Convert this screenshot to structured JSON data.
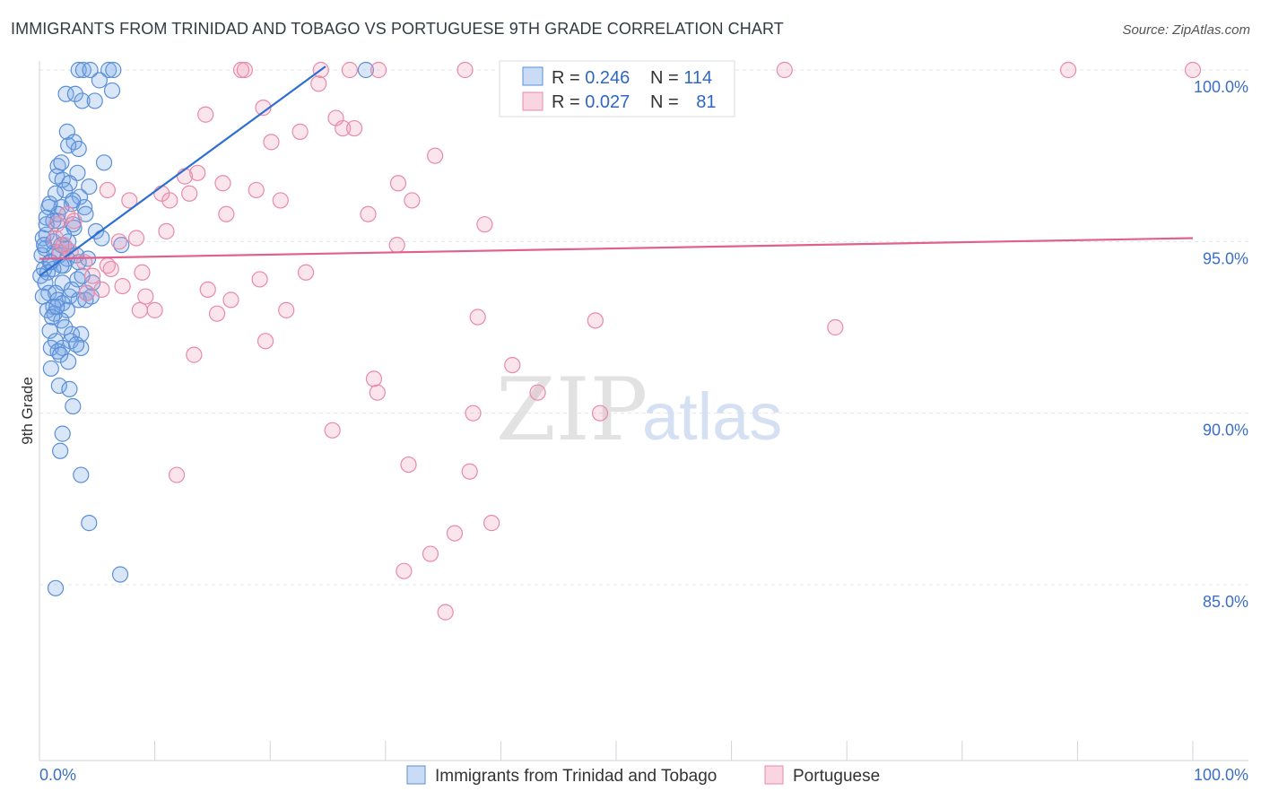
{
  "title": "IMMIGRANTS FROM TRINIDAD AND TOBAGO VS PORTUGUESE 9TH GRADE CORRELATION CHART",
  "source": "Source: ZipAtlas.com",
  "watermark": {
    "zip": "ZIP",
    "atlas": "atlas"
  },
  "chart_data": {
    "type": "scatter",
    "ylabel": "9th Grade",
    "xlim": [
      0,
      100
    ],
    "ylim": [
      80.5,
      101.0
    ],
    "x_tick_labels": [
      "0.0%",
      "100.0%"
    ],
    "y_ticks": [
      {
        "value": 100,
        "label": "100.0%"
      },
      {
        "value": 95,
        "label": "95.0%"
      },
      {
        "value": 90,
        "label": "90.0%"
      },
      {
        "value": 85,
        "label": "85.0%"
      }
    ],
    "legend": [
      {
        "r_label": "R = ",
        "r_value": "0.246",
        "n_label": "N = ",
        "n_value": "114"
      },
      {
        "r_label": "R = ",
        "r_value": "0.027",
        "n_label": "N = ",
        "n_value": "81"
      }
    ],
    "series": [
      {
        "name": "Immigrants from Trinidad and Tobago",
        "color": "#5a8fd8",
        "trend": {
          "x": [
            0.0,
            24.8
          ],
          "y": [
            94.0,
            100.1
          ]
        },
        "points": [
          [
            3.4,
            100
          ],
          [
            3.8,
            100
          ],
          [
            4.4,
            100
          ],
          [
            6.0,
            100
          ],
          [
            6.4,
            100
          ],
          [
            28.3,
            100
          ],
          [
            5.2,
            99.7
          ],
          [
            6.3,
            99.4
          ],
          [
            2.3,
            99.3
          ],
          [
            3.1,
            99.3
          ],
          [
            3.7,
            99.1
          ],
          [
            4.8,
            99.1
          ],
          [
            2.4,
            98.2
          ],
          [
            3.0,
            97.9
          ],
          [
            2.5,
            97.8
          ],
          [
            3.4,
            97.7
          ],
          [
            5.6,
            97.3
          ],
          [
            1.6,
            97.2
          ],
          [
            1.9,
            97.3
          ],
          [
            1.5,
            96.9
          ],
          [
            3.3,
            97.0
          ],
          [
            2.0,
            96.8
          ],
          [
            2.6,
            96.7
          ],
          [
            4.3,
            96.6
          ],
          [
            2.2,
            96.5
          ],
          [
            3.5,
            96.3
          ],
          [
            2.8,
            96.1
          ],
          [
            3.9,
            96.0
          ],
          [
            0.8,
            96.0
          ],
          [
            1.9,
            96.0
          ],
          [
            1.6,
            95.8
          ],
          [
            0.6,
            95.7
          ],
          [
            4.0,
            95.8
          ],
          [
            1.2,
            95.6
          ],
          [
            1.6,
            95.6
          ],
          [
            2.9,
            95.5
          ],
          [
            4.9,
            95.3
          ],
          [
            0.6,
            95.2
          ],
          [
            0.3,
            95.1
          ],
          [
            5.4,
            95.1
          ],
          [
            7.1,
            94.9
          ],
          [
            0.5,
            94.8
          ],
          [
            1.3,
            94.7
          ],
          [
            1.7,
            94.6
          ],
          [
            2.4,
            94.5
          ],
          [
            3.2,
            94.6
          ],
          [
            0.2,
            94.6
          ],
          [
            0.9,
            94.4
          ],
          [
            2.1,
            94.3
          ],
          [
            3.4,
            94.4
          ],
          [
            0.4,
            94.2
          ],
          [
            1.2,
            94.2
          ],
          [
            1.9,
            94.3
          ],
          [
            0.7,
            94.1
          ],
          [
            0.1,
            94.0
          ],
          [
            3.3,
            93.9
          ],
          [
            2.0,
            93.8
          ],
          [
            4.6,
            93.8
          ],
          [
            0.8,
            93.5
          ],
          [
            1.4,
            93.5
          ],
          [
            2.6,
            93.4
          ],
          [
            4.5,
            93.4
          ],
          [
            1.6,
            93.3
          ],
          [
            3.4,
            93.3
          ],
          [
            4.0,
            93.3
          ],
          [
            2.0,
            93.2
          ],
          [
            1.2,
            93.1
          ],
          [
            0.7,
            93.0
          ],
          [
            2.4,
            93.0
          ],
          [
            1.3,
            92.9
          ],
          [
            1.9,
            92.7
          ],
          [
            0.9,
            92.4
          ],
          [
            2.8,
            92.3
          ],
          [
            3.6,
            92.3
          ],
          [
            1.4,
            92.1
          ],
          [
            2.7,
            92.1
          ],
          [
            1.0,
            91.9
          ],
          [
            2.0,
            91.9
          ],
          [
            1.6,
            91.8
          ],
          [
            3.6,
            91.9
          ],
          [
            1.8,
            91.7
          ],
          [
            2.5,
            91.5
          ],
          [
            1.0,
            91.3
          ],
          [
            1.7,
            90.8
          ],
          [
            2.6,
            90.7
          ],
          [
            2.9,
            90.2
          ],
          [
            2.0,
            89.4
          ],
          [
            1.8,
            88.9
          ],
          [
            3.6,
            88.2
          ],
          [
            4.3,
            86.8
          ],
          [
            7.0,
            85.3
          ],
          [
            1.4,
            84.9
          ],
          [
            0.9,
            96.1
          ],
          [
            1.2,
            95.0
          ],
          [
            2.3,
            94.8
          ],
          [
            0.5,
            93.8
          ],
          [
            2.8,
            93.6
          ],
          [
            1.1,
            92.8
          ],
          [
            3.0,
            95.4
          ],
          [
            0.4,
            94.9
          ],
          [
            1.5,
            93.1
          ],
          [
            2.2,
            92.5
          ],
          [
            4.2,
            94.5
          ],
          [
            0.6,
            95.5
          ],
          [
            1.9,
            94.9
          ],
          [
            3.7,
            94.0
          ],
          [
            2.5,
            95.0
          ],
          [
            1.0,
            94.4
          ],
          [
            0.3,
            93.4
          ],
          [
            2.9,
            96.2
          ],
          [
            1.4,
            96.4
          ],
          [
            3.2,
            92.0
          ],
          [
            4.1,
            93.5
          ],
          [
            2.1,
            95.2
          ]
        ]
      },
      {
        "name": "Portuguese",
        "color": "#e88aa8",
        "trend": {
          "x": [
            0.0,
            100.0
          ],
          "y": [
            94.5,
            95.1
          ]
        },
        "points": [
          [
            17.5,
            100
          ],
          [
            17.8,
            100
          ],
          [
            24.4,
            100
          ],
          [
            26.9,
            100
          ],
          [
            29.4,
            100
          ],
          [
            36.9,
            100
          ],
          [
            64.6,
            100
          ],
          [
            89.2,
            100
          ],
          [
            100,
            100
          ],
          [
            24.2,
            99.6
          ],
          [
            19.4,
            98.9
          ],
          [
            14.4,
            98.7
          ],
          [
            25.7,
            98.6
          ],
          [
            26.3,
            98.3
          ],
          [
            27.3,
            98.3
          ],
          [
            22.6,
            98.2
          ],
          [
            20.1,
            97.9
          ],
          [
            34.3,
            97.5
          ],
          [
            13.7,
            97.0
          ],
          [
            12.6,
            96.9
          ],
          [
            15.9,
            96.7
          ],
          [
            31.1,
            96.7
          ],
          [
            18.8,
            96.5
          ],
          [
            5.9,
            96.5
          ],
          [
            10.6,
            96.4
          ],
          [
            13.0,
            96.4
          ],
          [
            7.8,
            96.2
          ],
          [
            11.3,
            96.2
          ],
          [
            20.9,
            96.2
          ],
          [
            32.3,
            96.2
          ],
          [
            16.2,
            95.8
          ],
          [
            28.5,
            95.8
          ],
          [
            2.4,
            95.8
          ],
          [
            1.5,
            95.5
          ],
          [
            38.6,
            95.5
          ],
          [
            11.0,
            95.3
          ],
          [
            8.4,
            95.1
          ],
          [
            1.4,
            95.1
          ],
          [
            6.9,
            95.0
          ],
          [
            31.0,
            94.9
          ],
          [
            2.7,
            94.7
          ],
          [
            1.8,
            94.7
          ],
          [
            5.9,
            94.3
          ],
          [
            3.9,
            94.4
          ],
          [
            6.2,
            94.2
          ],
          [
            8.9,
            94.1
          ],
          [
            23.1,
            94.1
          ],
          [
            19.1,
            93.9
          ],
          [
            7.2,
            93.7
          ],
          [
            5.4,
            93.6
          ],
          [
            14.6,
            93.6
          ],
          [
            4.1,
            93.5
          ],
          [
            9.2,
            93.4
          ],
          [
            16.6,
            93.3
          ],
          [
            8.7,
            93.0
          ],
          [
            10.0,
            93.0
          ],
          [
            21.4,
            93.0
          ],
          [
            15.4,
            92.9
          ],
          [
            38.0,
            92.8
          ],
          [
            48.2,
            92.7
          ],
          [
            69.0,
            92.5
          ],
          [
            19.6,
            92.1
          ],
          [
            13.4,
            91.7
          ],
          [
            41.0,
            91.4
          ],
          [
            29.0,
            91.0
          ],
          [
            29.3,
            90.6
          ],
          [
            43.2,
            90.6
          ],
          [
            37.6,
            90.0
          ],
          [
            48.6,
            90.0
          ],
          [
            25.4,
            89.5
          ],
          [
            32.0,
            88.5
          ],
          [
            37.3,
            88.3
          ],
          [
            11.9,
            88.2
          ],
          [
            39.2,
            86.8
          ],
          [
            36.0,
            86.5
          ],
          [
            33.9,
            85.9
          ],
          [
            31.6,
            85.4
          ],
          [
            35.2,
            84.2
          ],
          [
            2.1,
            94.9
          ],
          [
            3.0,
            95.6
          ],
          [
            4.6,
            94.0
          ]
        ]
      }
    ]
  }
}
